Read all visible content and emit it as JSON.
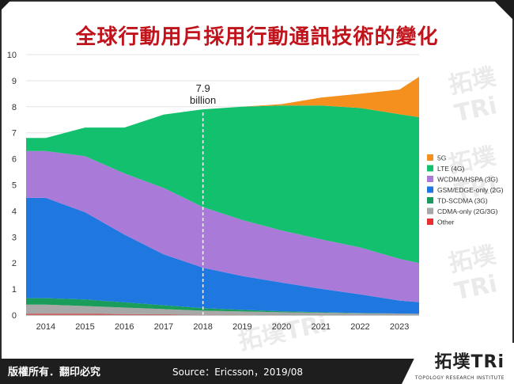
{
  "title": "全球行動用戶採用行動通訊技術的變化",
  "watermark": {
    "text": "拓墣TRi",
    "sub": "TOPOLOGY RESEARCH INSTITUTE"
  },
  "footer": {
    "copyright": "版權所有．翻印必究",
    "source": "Source：Ericsson，2019/08",
    "logo": "拓墣TRi",
    "logo_sub": "TOPOLOGY RESEARCH INSTITUTE"
  },
  "chart_data": {
    "type": "area",
    "stacked": true,
    "title": "",
    "xlabel": "",
    "ylabel": "",
    "x": [
      2013.5,
      2014,
      2015,
      2016,
      2017,
      2018,
      2019,
      2020,
      2021,
      2022,
      2023,
      2023.5
    ],
    "x_ticks": [
      2014,
      2015,
      2016,
      2017,
      2018,
      2019,
      2020,
      2021,
      2022,
      2023
    ],
    "ylim": [
      0,
      10
    ],
    "y_ticks": [
      0,
      1,
      2,
      3,
      4,
      5,
      6,
      7,
      8,
      9,
      10
    ],
    "grid": true,
    "legend_position": "right",
    "annotation": {
      "x": 2018,
      "value": "7.9",
      "label": "billion"
    },
    "series": [
      {
        "name": "Other",
        "color": "#e8312e",
        "values": [
          0.05,
          0.05,
          0.05,
          0.04,
          0.03,
          0.02,
          0.02,
          0.01,
          0.01,
          0.01,
          0.01,
          0.01
        ]
      },
      {
        "name": "CDMA-only (2G/3G)",
        "color": "#a8a8a8",
        "values": [
          0.35,
          0.35,
          0.3,
          0.25,
          0.2,
          0.15,
          0.12,
          0.1,
          0.08,
          0.06,
          0.05,
          0.04
        ]
      },
      {
        "name": "TD-SCDMA (3G)",
        "color": "#1a9c5a",
        "values": [
          0.25,
          0.25,
          0.25,
          0.2,
          0.15,
          0.1,
          0.06,
          0.04,
          0.02,
          0.01,
          0.0,
          0.0
        ]
      },
      {
        "name": "GSM/EDGE-only (2G)",
        "color": "#1f77e0",
        "values": [
          3.85,
          3.85,
          3.35,
          2.6,
          1.95,
          1.55,
          1.3,
          1.1,
          0.9,
          0.72,
          0.5,
          0.45
        ]
      },
      {
        "name": "WCDMA/HSPA (3G)",
        "color": "#a97ad8",
        "values": [
          1.8,
          1.8,
          2.15,
          2.35,
          2.55,
          2.33,
          2.15,
          2.0,
          1.9,
          1.8,
          1.6,
          1.5
        ]
      },
      {
        "name": "LTE (4G)",
        "color": "#12c06e",
        "values": [
          0.5,
          0.5,
          1.1,
          1.76,
          2.82,
          3.75,
          4.35,
          4.8,
          5.14,
          5.35,
          5.55,
          5.6
        ]
      },
      {
        "name": "5G",
        "color": "#f5901e",
        "values": [
          0.0,
          0.0,
          0.0,
          0.0,
          0.0,
          0.0,
          0.0,
          0.05,
          0.3,
          0.55,
          0.95,
          1.55
        ]
      }
    ],
    "legend_order": [
      "5G",
      "LTE (4G)",
      "WCDMA/HSPA (3G)",
      "GSM/EDGE-only (2G)",
      "TD-SCDMA (3G)",
      "CDMA-only (2G/3G)",
      "Other"
    ]
  }
}
